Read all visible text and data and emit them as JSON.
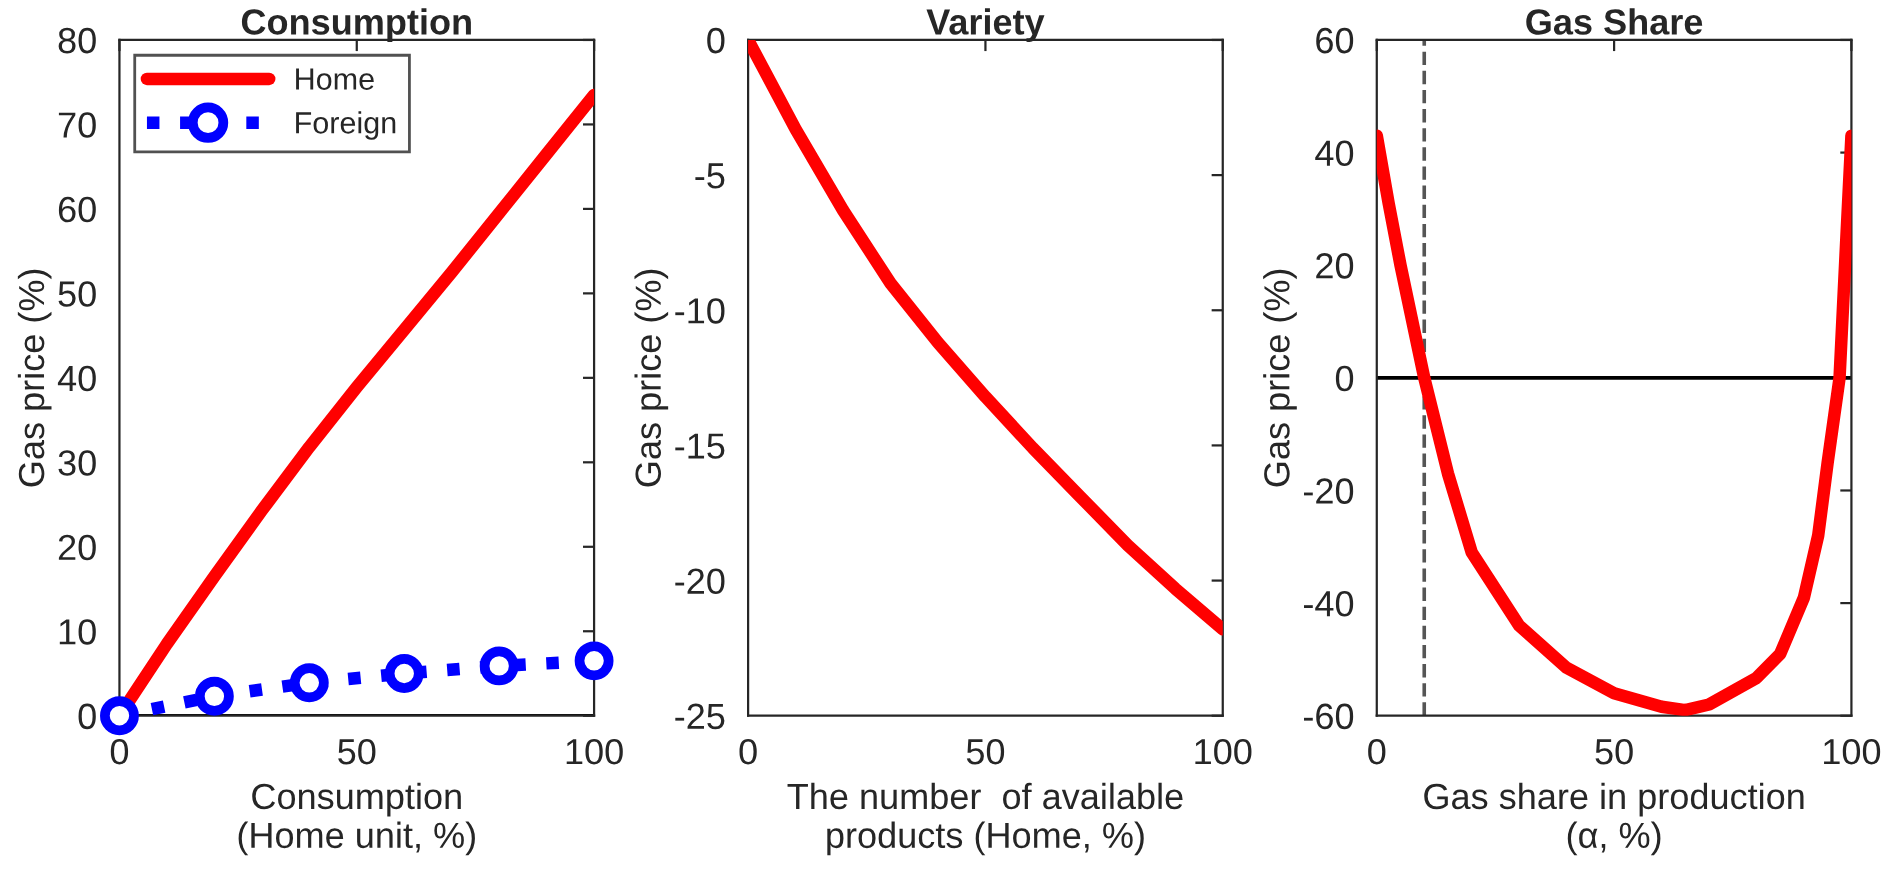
{
  "chart_data": [
    {
      "type": "line",
      "title": "Consumption",
      "xlabel": "Consumption\n(Home unit, %)",
      "ylabel": "Gas price (%)",
      "xlim": [
        0,
        100
      ],
      "xticks": [
        0,
        50,
        100
      ],
      "ylim": [
        0,
        80
      ],
      "yticks": [
        0,
        10,
        20,
        30,
        40,
        50,
        60,
        70,
        80
      ],
      "grid": false,
      "legend": "top left",
      "series": [
        {
          "name": "Home",
          "color": "#ff0000",
          "x": [
            0,
            10,
            20,
            30,
            40,
            50,
            60,
            70,
            80,
            90,
            100
          ],
          "values": [
            0,
            8.5,
            16.5,
            24.3,
            31.8,
            38.9,
            45.7,
            52.5,
            59.5,
            66.5,
            73.5
          ],
          "marker": "none",
          "line_style": "solid"
        },
        {
          "name": "Foreign",
          "color": "#0000ff",
          "x": [
            0,
            20,
            40,
            60,
            80,
            100
          ],
          "values": [
            0,
            2.3,
            3.9,
            5.0,
            5.9,
            6.5
          ],
          "marker": "circle",
          "line_style": "dotted"
        }
      ],
      "ref_lines": [
        {
          "axis": "y",
          "value": 0,
          "color": "#000000",
          "line_style": "solid"
        }
      ]
    },
    {
      "type": "line",
      "title": "Variety",
      "xlabel": "The number  of available\nproducts (Home, %)",
      "ylabel": "Gas price (%)",
      "xlim": [
        0,
        100
      ],
      "xticks": [
        0,
        50,
        100
      ],
      "ylim": [
        -25,
        0
      ],
      "yticks": [
        -25,
        -20,
        -15,
        -10,
        -5,
        0
      ],
      "grid": false,
      "series": [
        {
          "color": "#ff0000",
          "x": [
            0,
            10,
            20,
            30,
            40,
            50,
            60,
            70,
            80,
            90,
            100
          ],
          "values": [
            0,
            -3.3,
            -6.3,
            -9.0,
            -11.2,
            -13.2,
            -15.1,
            -16.9,
            -18.7,
            -20.3,
            -21.8
          ],
          "marker": "none",
          "line_style": "solid"
        }
      ]
    },
    {
      "type": "line",
      "title": "Gas Share",
      "xlabel": "Gas share in production\n(α, %)",
      "ylabel": "Gas price (%)",
      "xlim": [
        0,
        100
      ],
      "xticks": [
        0,
        50,
        100
      ],
      "ylim": [
        -60,
        60
      ],
      "yticks": [
        -60,
        -40,
        -20,
        0,
        20,
        40,
        60
      ],
      "grid": false,
      "series": [
        {
          "color": "#ff0000",
          "x": [
            0,
            2.5,
            5,
            10,
            15,
            20,
            30,
            40,
            50,
            60,
            65,
            70,
            80,
            85,
            90,
            93,
            95,
            97.5,
            99,
            100
          ],
          "values": [
            43,
            31,
            20,
            0,
            -17,
            -31,
            -44,
            -51.5,
            -56,
            -58.4,
            -59,
            -58,
            -53.3,
            -49,
            -39,
            -28,
            -15,
            0,
            26,
            43
          ],
          "marker": "none",
          "line_style": "solid"
        }
      ],
      "ref_lines": [
        {
          "axis": "y",
          "value": 0,
          "color": "#000000",
          "line_style": "solid"
        },
        {
          "axis": "x",
          "value": 10,
          "color": "#555555",
          "line_style": "dashed"
        }
      ]
    }
  ]
}
